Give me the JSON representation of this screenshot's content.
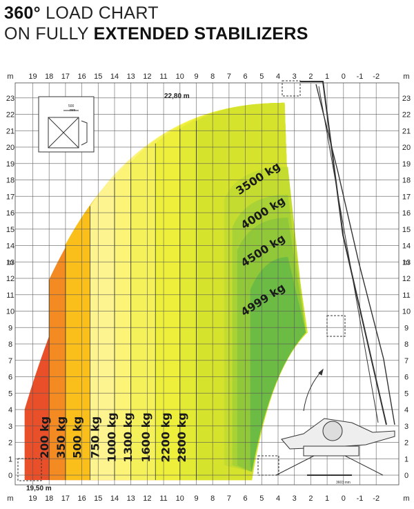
{
  "header": {
    "line1_bold": "360°",
    "line1_rest": " LOAD CHART",
    "line2_pre": "ON FULLY ",
    "line2_bold": "EXTENDED STABILIZERS"
  },
  "chart_data": {
    "type": "area",
    "x_unit_label": "m",
    "y_unit_label": "m",
    "xlim": [
      19.5,
      -2.5
    ],
    "ylim": [
      -0.5,
      23.5
    ],
    "x_ticks": [
      19,
      18,
      17,
      16,
      15,
      14,
      13,
      12,
      11,
      10,
      9,
      8,
      7,
      6,
      5,
      4,
      3,
      2,
      1,
      0,
      -1,
      -2
    ],
    "y_ticks": [
      0,
      1,
      2,
      3,
      4,
      5,
      6,
      7,
      8,
      9,
      10,
      11,
      12,
      13,
      14,
      15,
      16,
      17,
      18,
      19,
      20,
      21,
      22,
      23
    ],
    "max_height_label": "22,80 m",
    "max_outreach_label": "19,50 m",
    "basket_label": "500",
    "basket_unit": "mm",
    "base_label": "3603 mm",
    "load_zones": [
      {
        "label": "200 kg",
        "max_reach": 19.5,
        "color": "#e9502a"
      },
      {
        "label": "350 kg",
        "max_reach": 18.0,
        "color": "#f38a22"
      },
      {
        "label": "500 kg",
        "max_reach": 17.0,
        "color": "#fbbf1c"
      },
      {
        "label": "750 kg",
        "max_reach": 15.5,
        "color": "#fdf38f"
      },
      {
        "label": "1000 kg",
        "max_reach": 14.0,
        "color": "#fcf477"
      },
      {
        "label": "1300 kg",
        "max_reach": 13.0,
        "color": "#f5f15a"
      },
      {
        "label": "1600 kg",
        "max_reach": 11.5,
        "color": "#eeef3b"
      },
      {
        "label": "2200 kg",
        "max_reach": 10.0,
        "color": "#e3ea34"
      },
      {
        "label": "2800 kg",
        "max_reach": 9.0,
        "color": "#d5e32d"
      },
      {
        "label": "3500 kg",
        "max_reach": 7.5,
        "color": "#c3dc2f"
      },
      {
        "label": "4000 kg",
        "max_reach": 6.8,
        "color": "#a8d236"
      },
      {
        "label": "4500 kg",
        "max_reach": 6.5,
        "color": "#91c83a"
      },
      {
        "label": "4999 kg",
        "max_reach": 5.6,
        "color": "#6cbb45"
      }
    ]
  }
}
